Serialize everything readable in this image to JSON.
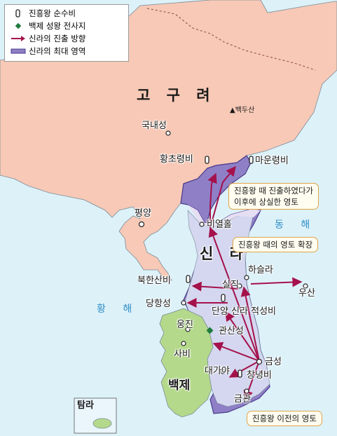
{
  "legend": {
    "items": [
      {
        "icon": "monument-icon",
        "label": "진흥왕 순수비"
      },
      {
        "icon": "diamond-icon",
        "label": "백제 성왕 전사지"
      },
      {
        "icon": "arrow-icon",
        "label": "신라의 진출 방향"
      },
      {
        "icon": "band-icon",
        "label": "신라의 최대 영역"
      }
    ]
  },
  "regions": {
    "goguryeo": "고 구 려",
    "silla": "신 라",
    "baekje": "백제"
  },
  "seas": {
    "east": "동 해",
    "west": "황 해"
  },
  "places": {
    "baekdusan": "▲백두산",
    "gungnaeseong": "국내성",
    "hwangchoryeong": "황초령비",
    "maunryeong": "마운령비",
    "pyeongyang": "평양",
    "biyeolhol": "비열홀",
    "haseulla": "하슬라",
    "usan": "우산",
    "bukhansan": "북한산비",
    "siljik": "실직",
    "danghangseong": "당항성",
    "danyang": "단양 신라 적성비",
    "ungjin": "웅진",
    "gwansanseong": "관산성",
    "sabi": "사비",
    "geumseong": "금성",
    "daegaya": "대가야",
    "changnyeong": "창녕비",
    "geumgwan": "금관",
    "tamra": "탐라"
  },
  "callouts": {
    "lost_line1": "진흥왕 때 진출하였다가",
    "lost_line2": "이후에 상실한 영토",
    "expansion": "진흥왕 때의 영토 확장",
    "prior": "진흥왕 이전의 영토"
  },
  "colors": {
    "sea": "#ddf1f9",
    "goguryeo": "#f7c9b6",
    "silla_prior": "#d4d7ef",
    "silla_max": "#8e7fc6",
    "baekje": "#b4d98b",
    "lost_territory": "#e6def2",
    "arrow": "#a4114b",
    "monument": "#222222",
    "battle": "#1f7a3e",
    "callout_border": "#e0a546"
  }
}
